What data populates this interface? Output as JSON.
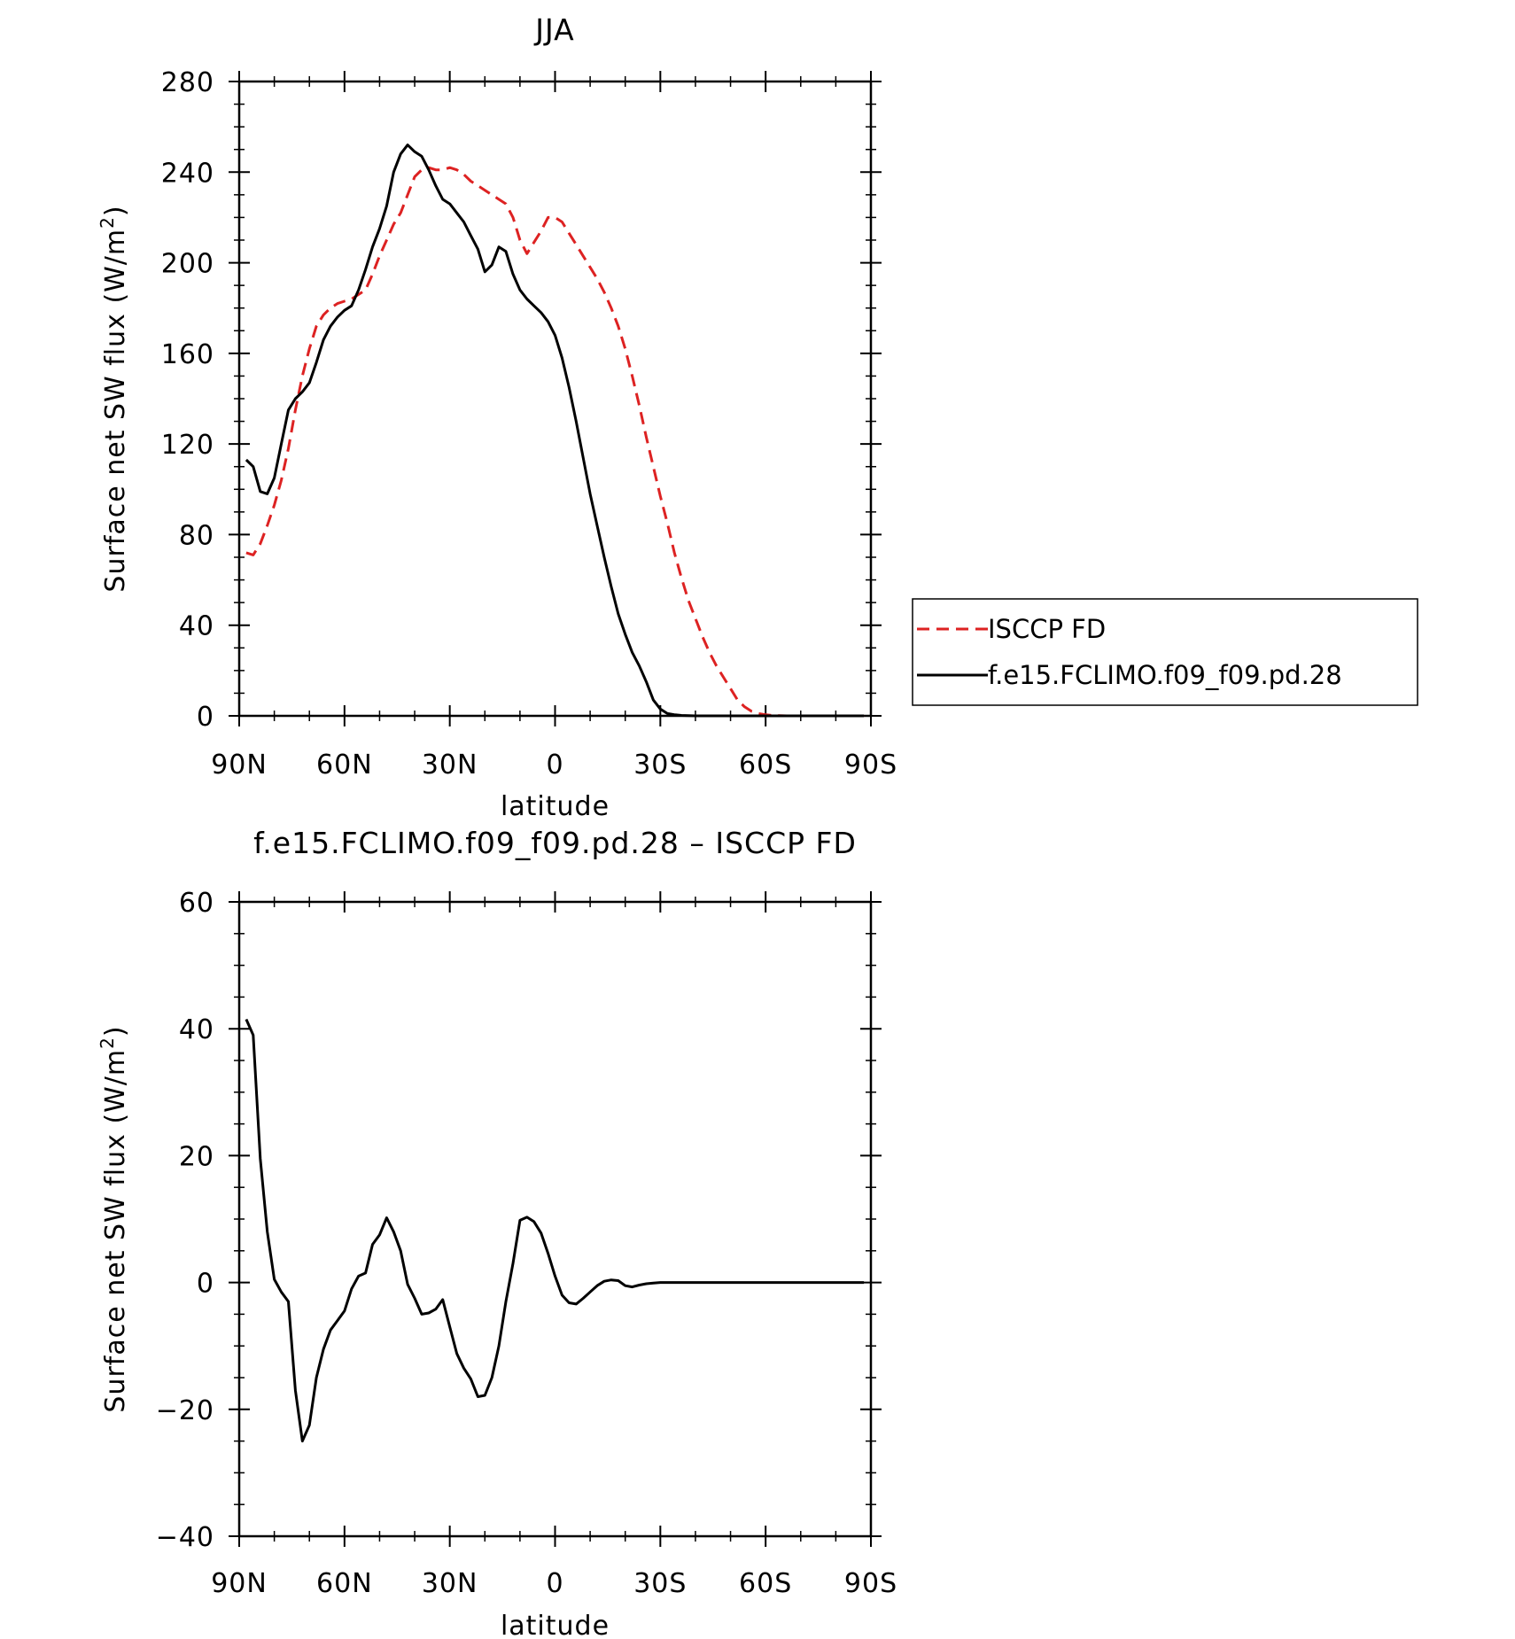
{
  "chart_data": [
    {
      "type": "line",
      "title": "JJA",
      "xlabel": "latitude",
      "ylabel": "Surface net SW flux (W/m",
      "ylabel_sup": "2",
      "ylabel_close": ")",
      "xlim": [
        -90,
        90
      ],
      "ylim": [
        0,
        280
      ],
      "yticks": [
        0,
        40,
        80,
        120,
        160,
        200,
        240,
        280
      ],
      "xticks": [
        {
          "v": -90,
          "label": "90N"
        },
        {
          "v": -60,
          "label": "60N"
        },
        {
          "v": -30,
          "label": "30N"
        },
        {
          "v": 0,
          "label": "0"
        },
        {
          "v": 30,
          "label": "30S"
        },
        {
          "v": 60,
          "label": "60S"
        },
        {
          "v": 90,
          "label": "90S"
        }
      ],
      "grid": false,
      "legend": {
        "placement": "right",
        "entries": [
          {
            "name": "ISCCP FD",
            "color": "#dd2222",
            "dash": true
          },
          {
            "name": "f.e15.FCLIMO.f09_f09.pd.28",
            "color": "#000000",
            "dash": false
          }
        ]
      },
      "series": [
        {
          "name": "ISCCP FD",
          "color": "#dd2222",
          "dash": true,
          "x": [
            -88,
            -86,
            -84,
            -82,
            -80,
            -78,
            -76,
            -74,
            -72,
            -70,
            -68,
            -66,
            -64,
            -62,
            -60,
            -58,
            -56,
            -54,
            -52,
            -50,
            -48,
            -46,
            -44,
            -42,
            -40,
            -38,
            -36,
            -34,
            -32,
            -30,
            -28,
            -26,
            -24,
            -22,
            -20,
            -18,
            -16,
            -14,
            -12,
            -10,
            -8,
            -6,
            -4,
            -2,
            0,
            2,
            4,
            6,
            8,
            10,
            12,
            14,
            16,
            18,
            20,
            22,
            24,
            26,
            28,
            30,
            32,
            34,
            36,
            38,
            40,
            42,
            44,
            46,
            48,
            50,
            52,
            54,
            56,
            58,
            60,
            62,
            64,
            66,
            68,
            70,
            72,
            74,
            76,
            78,
            80,
            82,
            84,
            86,
            88
          ],
          "y": [
            72,
            71,
            76,
            84,
            93,
            104,
            118,
            135,
            150,
            162,
            172,
            177,
            180,
            182,
            183,
            184,
            186,
            188,
            195,
            203,
            210,
            217,
            222,
            230,
            238,
            241,
            242,
            241,
            241,
            242,
            241,
            239,
            236,
            234,
            232,
            230,
            228,
            226,
            220,
            210,
            204,
            209,
            214,
            220,
            220,
            218,
            213,
            208,
            203,
            198,
            193,
            187,
            180,
            172,
            162,
            150,
            137,
            123,
            110,
            97,
            85,
            72,
            61,
            51,
            43,
            35,
            28,
            22,
            17,
            12,
            7,
            4,
            2,
            1,
            0.5,
            0.2,
            0.1,
            0,
            0,
            0,
            0,
            0,
            0,
            0,
            0,
            0,
            0,
            0,
            0
          ]
        },
        {
          "name": "f.e15.FCLIMO.f09_f09.pd.28",
          "color": "#000000",
          "dash": false,
          "x": [
            -88,
            -86,
            -84,
            -82,
            -80,
            -78,
            -76,
            -74,
            -72,
            -70,
            -68,
            -66,
            -64,
            -62,
            -60,
            -58,
            -56,
            -54,
            -52,
            -50,
            -48,
            -46,
            -44,
            -42,
            -40,
            -38,
            -36,
            -34,
            -32,
            -30,
            -28,
            -26,
            -24,
            -22,
            -20,
            -18,
            -16,
            -14,
            -12,
            -10,
            -8,
            -6,
            -4,
            -2,
            0,
            2,
            4,
            6,
            8,
            10,
            12,
            14,
            16,
            18,
            20,
            22,
            24,
            26,
            28,
            30,
            32,
            34,
            36,
            38,
            40,
            42,
            44,
            46,
            48,
            50,
            52,
            54,
            56,
            58,
            60,
            62,
            64,
            66,
            68,
            70,
            72,
            74,
            76,
            78,
            80,
            82,
            84,
            86,
            88
          ],
          "y": [
            113,
            110,
            99,
            98,
            105,
            120,
            135,
            140,
            143,
            147,
            156,
            166,
            172,
            176,
            179,
            181,
            188,
            197,
            207,
            215,
            225,
            240,
            248,
            252,
            249,
            247,
            241,
            234,
            228,
            226,
            222,
            218,
            212,
            206,
            196,
            199,
            207,
            205,
            195,
            188,
            184,
            181,
            178,
            174,
            168,
            158,
            145,
            130,
            114,
            98,
            84,
            70,
            57,
            45,
            36,
            28,
            22,
            15,
            7,
            3,
            1,
            0.5,
            0.2,
            0.1,
            0,
            0,
            0,
            0,
            0,
            0,
            0,
            0,
            0,
            0,
            0,
            0,
            0,
            0,
            0,
            0,
            0,
            0,
            0,
            0,
            0,
            0,
            0,
            0,
            0
          ]
        }
      ]
    },
    {
      "type": "line",
      "title": "f.e15.FCLIMO.f09_f09.pd.28 – ISCCP FD",
      "xlabel": "latitude",
      "ylabel": "Surface net SW flux (W/m",
      "ylabel_sup": "2",
      "ylabel_close": ")",
      "xlim": [
        -90,
        90
      ],
      "ylim": [
        -40,
        60
      ],
      "yticks": [
        -40,
        -20,
        0,
        20,
        40,
        60
      ],
      "ytick_labels": [
        "−40",
        "−20",
        "0",
        "20",
        "40",
        "60"
      ],
      "xticks": [
        {
          "v": -90,
          "label": "90N"
        },
        {
          "v": -60,
          "label": "60N"
        },
        {
          "v": -30,
          "label": "30N"
        },
        {
          "v": 0,
          "label": "0"
        },
        {
          "v": 30,
          "label": "30S"
        },
        {
          "v": 60,
          "label": "60S"
        },
        {
          "v": 90,
          "label": "90S"
        }
      ],
      "grid": false,
      "series": [
        {
          "color": "#000000",
          "dash": false,
          "x": [
            -88,
            -86,
            -84,
            -82,
            -80,
            -78,
            -76,
            -74,
            -72,
            -70,
            -68,
            -66,
            -64,
            -62,
            -60,
            -58,
            -56,
            -54,
            -52,
            -50,
            -48,
            -46,
            -44,
            -42,
            -40,
            -38,
            -36,
            -34,
            -32,
            -30,
            -28,
            -26,
            -24,
            -22,
            -20,
            -18,
            -16,
            -14,
            -12,
            -10,
            -8,
            -6,
            -4,
            -2,
            0,
            2,
            4,
            6,
            8,
            10,
            12,
            14,
            16,
            18,
            20,
            22,
            24,
            26,
            28,
            30,
            32,
            34,
            36,
            38,
            40,
            42,
            44,
            46,
            48,
            50,
            52,
            54,
            56,
            58,
            60,
            62,
            64,
            66,
            68,
            70,
            72,
            74,
            76,
            78,
            80,
            82,
            84,
            86,
            88
          ],
          "y": [
            41.5,
            39,
            19.5,
            8,
            0.5,
            -1.5,
            -3,
            -17,
            -25,
            -22.5,
            -15,
            -10.5,
            -7.5,
            -6,
            -4.5,
            -1,
            1,
            1.5,
            6,
            7.5,
            10.2,
            8,
            5,
            -0.3,
            -2.5,
            -5,
            -4.8,
            -4.2,
            -2.7,
            -7,
            -11.2,
            -13.5,
            -15.2,
            -18,
            -17.8,
            -15,
            -10,
            -3,
            3,
            9.8,
            10.3,
            9.6,
            7.8,
            4.6,
            1,
            -2,
            -3.2,
            -3.4,
            -2.5,
            -1.5,
            -0.5,
            0.2,
            0.4,
            0.3,
            -0.5,
            -0.7,
            -0.4,
            -0.2,
            -0.1,
            0,
            0,
            0,
            0,
            0,
            0,
            0,
            0,
            0,
            0,
            0,
            0,
            0,
            0,
            0,
            0,
            0,
            0,
            0,
            0,
            0,
            0,
            0,
            0,
            0,
            0,
            0,
            0,
            0,
            0
          ]
        }
      ]
    }
  ]
}
